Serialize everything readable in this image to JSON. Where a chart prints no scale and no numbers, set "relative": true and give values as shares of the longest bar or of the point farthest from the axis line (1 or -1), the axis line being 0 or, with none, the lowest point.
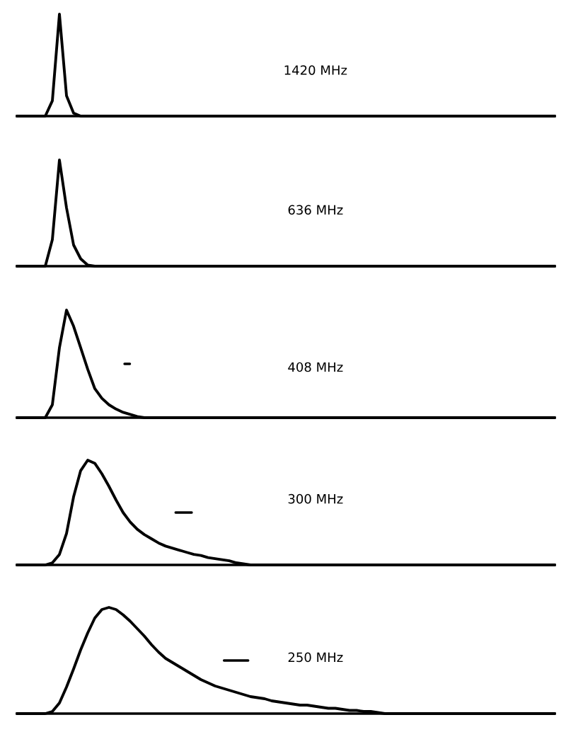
{
  "chart_data": [
    {
      "type": "line",
      "relative": true,
      "tick_labels": false,
      "title": "1420 MHz",
      "categories": [
        null,
        null,
        null,
        null,
        null,
        null,
        null,
        null,
        null,
        null,
        null,
        null,
        null,
        null,
        null,
        null,
        null,
        null,
        null,
        null,
        null,
        null,
        null,
        null,
        null,
        null,
        null,
        null,
        null,
        null,
        null,
        null,
        null,
        null,
        null,
        null,
        null,
        null,
        null,
        null,
        null,
        null,
        null,
        null,
        null,
        null,
        null,
        null,
        null,
        null,
        null,
        null,
        null,
        null,
        null,
        null,
        null,
        null,
        null,
        null,
        null,
        null,
        null,
        null,
        null,
        null,
        null,
        null,
        null,
        null,
        null,
        null,
        null,
        null,
        null,
        null,
        null
      ],
      "series": [
        {
          "color": "#000000",
          "values": [
            0,
            0,
            0,
            0,
            0,
            0.15,
            1,
            0.2,
            0.03,
            0,
            0,
            0,
            0,
            0,
            0,
            0,
            0,
            0,
            0,
            0,
            0,
            0,
            0,
            0,
            0,
            0,
            0,
            0,
            0,
            0,
            0,
            0,
            0,
            0,
            0,
            0,
            0,
            0,
            0,
            0,
            0,
            0,
            0,
            0,
            0,
            0,
            0,
            0,
            0,
            0,
            0,
            0,
            0,
            0,
            0,
            0,
            0,
            0,
            0,
            0,
            0,
            0,
            0,
            0,
            0,
            0,
            0,
            0,
            0,
            0,
            0,
            0,
            0,
            0,
            0,
            0,
            0
          ]
        }
      ]
    },
    {
      "type": "line",
      "relative": true,
      "tick_labels": false,
      "title": "636 MHz",
      "categories": [
        null,
        null,
        null,
        null,
        null,
        null,
        null,
        null,
        null,
        null,
        null,
        null,
        null,
        null,
        null,
        null,
        null,
        null,
        null,
        null,
        null,
        null,
        null,
        null,
        null,
        null,
        null,
        null,
        null,
        null,
        null,
        null,
        null,
        null,
        null,
        null,
        null,
        null,
        null,
        null,
        null,
        null,
        null,
        null,
        null,
        null,
        null,
        null,
        null,
        null,
        null,
        null,
        null,
        null,
        null,
        null,
        null,
        null,
        null,
        null,
        null,
        null,
        null,
        null,
        null,
        null,
        null,
        null,
        null,
        null,
        null,
        null,
        null,
        null,
        null,
        null,
        null
      ],
      "series": [
        {
          "color": "#000000",
          "values": [
            0,
            0,
            0,
            0,
            0,
            0.25,
            1,
            0.55,
            0.2,
            0.07,
            0.01,
            0,
            0,
            0,
            0,
            0,
            0,
            0,
            0,
            0,
            0,
            0,
            0,
            0,
            0,
            0,
            0,
            0,
            0,
            0,
            0,
            0,
            0,
            0,
            0,
            0,
            0,
            0,
            0,
            0,
            0,
            0,
            0,
            0,
            0,
            0,
            0,
            0,
            0,
            0,
            0,
            0,
            0,
            0,
            0,
            0,
            0,
            0,
            0,
            0,
            0,
            0,
            0,
            0,
            0,
            0,
            0,
            0,
            0,
            0,
            0,
            0,
            0,
            0,
            0,
            0,
            0
          ]
        }
      ]
    },
    {
      "type": "line",
      "relative": true,
      "tick_labels": false,
      "title": "408 MHz",
      "categories": [
        null,
        null,
        null,
        null,
        null,
        null,
        null,
        null,
        null,
        null,
        null,
        null,
        null,
        null,
        null,
        null,
        null,
        null,
        null,
        null,
        null,
        null,
        null,
        null,
        null,
        null,
        null,
        null,
        null,
        null,
        null,
        null,
        null,
        null,
        null,
        null,
        null,
        null,
        null,
        null,
        null,
        null,
        null,
        null,
        null,
        null,
        null,
        null,
        null,
        null,
        null,
        null,
        null,
        null,
        null,
        null,
        null,
        null,
        null,
        null,
        null,
        null,
        null,
        null,
        null,
        null,
        null,
        null,
        null,
        null,
        null,
        null,
        null,
        null,
        null,
        null,
        null
      ],
      "series": [
        {
          "color": "#000000",
          "values": [
            0,
            0,
            0,
            0,
            0,
            0.12,
            0.65,
            1,
            0.85,
            0.65,
            0.45,
            0.27,
            0.18,
            0.12,
            0.08,
            0.05,
            0.03,
            0.01,
            0,
            0,
            0,
            0,
            0,
            0,
            0,
            0,
            0,
            0,
            0,
            0,
            0,
            0,
            0,
            0,
            0,
            0,
            0,
            0,
            0,
            0,
            0,
            0,
            0,
            0,
            0,
            0,
            0,
            0,
            0,
            0,
            0,
            0,
            0,
            0,
            0,
            0,
            0,
            0,
            0,
            0,
            0,
            0,
            0,
            0,
            0,
            0,
            0,
            0,
            0,
            0,
            0,
            0,
            0,
            0,
            0,
            0,
            0
          ]
        }
      ]
    },
    {
      "type": "line",
      "relative": true,
      "tick_labels": false,
      "title": "300 MHz",
      "categories": [
        null,
        null,
        null,
        null,
        null,
        null,
        null,
        null,
        null,
        null,
        null,
        null,
        null,
        null,
        null,
        null,
        null,
        null,
        null,
        null,
        null,
        null,
        null,
        null,
        null,
        null,
        null,
        null,
        null,
        null,
        null,
        null,
        null,
        null,
        null,
        null,
        null,
        null,
        null,
        null,
        null,
        null,
        null,
        null,
        null,
        null,
        null,
        null,
        null,
        null,
        null,
        null,
        null,
        null,
        null,
        null,
        null,
        null,
        null,
        null,
        null,
        null,
        null,
        null,
        null,
        null,
        null,
        null,
        null,
        null,
        null,
        null,
        null,
        null,
        null,
        null,
        null
      ],
      "series": [
        {
          "color": "#000000",
          "values": [
            0,
            0,
            0,
            0,
            0,
            0.02,
            0.1,
            0.3,
            0.65,
            0.9,
            1,
            0.97,
            0.87,
            0.75,
            0.62,
            0.5,
            0.41,
            0.34,
            0.29,
            0.25,
            0.21,
            0.18,
            0.16,
            0.14,
            0.12,
            0.1,
            0.09,
            0.07,
            0.06,
            0.05,
            0.04,
            0.02,
            0.01,
            0,
            0,
            0,
            0,
            0,
            0,
            0,
            0,
            0,
            0,
            0,
            0,
            0,
            0,
            0,
            0,
            0,
            0,
            0,
            0,
            0,
            0,
            0,
            0,
            0,
            0,
            0,
            0,
            0,
            0,
            0,
            0,
            0,
            0,
            0,
            0,
            0,
            0,
            0,
            0,
            0,
            0,
            0,
            0
          ]
        }
      ]
    },
    {
      "type": "line",
      "relative": true,
      "tick_labels": false,
      "title": "250 MHz",
      "categories": [
        null,
        null,
        null,
        null,
        null,
        null,
        null,
        null,
        null,
        null,
        null,
        null,
        null,
        null,
        null,
        null,
        null,
        null,
        null,
        null,
        null,
        null,
        null,
        null,
        null,
        null,
        null,
        null,
        null,
        null,
        null,
        null,
        null,
        null,
        null,
        null,
        null,
        null,
        null,
        null,
        null,
        null,
        null,
        null,
        null,
        null,
        null,
        null,
        null,
        null,
        null,
        null,
        null,
        null,
        null,
        null,
        null,
        null,
        null,
        null,
        null,
        null,
        null,
        null,
        null,
        null,
        null,
        null,
        null,
        null,
        null,
        null,
        null,
        null,
        null,
        null,
        null
      ],
      "series": [
        {
          "color": "#000000",
          "values": [
            0,
            0,
            0,
            0,
            0,
            0.02,
            0.1,
            0.25,
            0.42,
            0.6,
            0.76,
            0.9,
            0.98,
            1,
            0.98,
            0.93,
            0.87,
            0.8,
            0.73,
            0.65,
            0.58,
            0.52,
            0.48,
            0.44,
            0.4,
            0.36,
            0.32,
            0.29,
            0.26,
            0.24,
            0.22,
            0.2,
            0.18,
            0.16,
            0.15,
            0.14,
            0.12,
            0.11,
            0.1,
            0.09,
            0.08,
            0.08,
            0.07,
            0.06,
            0.05,
            0.05,
            0.04,
            0.03,
            0.03,
            0.02,
            0.02,
            0.01,
            0,
            0,
            0,
            0,
            0,
            0,
            0,
            0,
            0,
            0,
            0,
            0,
            0,
            0,
            0,
            0,
            0,
            0,
            0,
            0,
            0,
            0,
            0,
            0,
            0
          ]
        }
      ]
    }
  ]
}
